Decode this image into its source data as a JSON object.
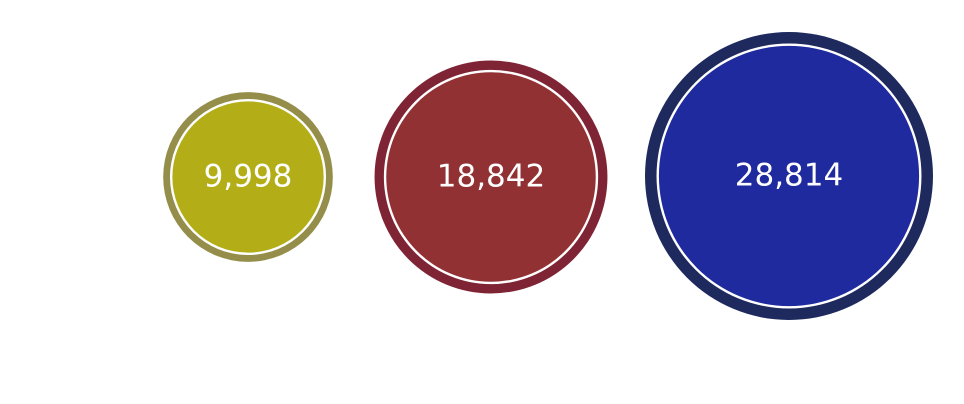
{
  "chart_data": {
    "type": "bubble",
    "bubbles": [
      {
        "label": "9,998",
        "value": 9998,
        "fill": "#b3ae18",
        "ring": "#948e4a"
      },
      {
        "label": "18,842",
        "value": 18842,
        "fill": "#923133",
        "ring": "#7f2434"
      },
      {
        "label": "28,814",
        "value": 28814,
        "fill": "#1f2a9e",
        "ring": "#1e2a5e"
      }
    ]
  }
}
